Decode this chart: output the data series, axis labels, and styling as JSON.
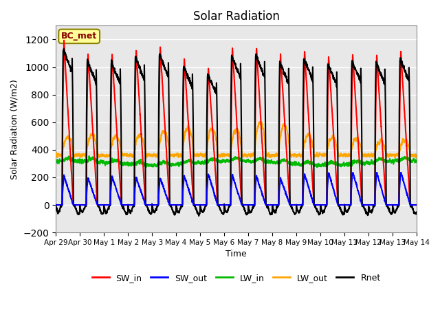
{
  "title": "Solar Radiation",
  "xlabel": "Time",
  "ylabel": "Solar Radiation (W/m2)",
  "ylim": [
    -200,
    1300
  ],
  "yticks": [
    -200,
    0,
    200,
    400,
    600,
    800,
    1000,
    1200
  ],
  "legend_label": "BC_met",
  "legend_box_color": "#FFFF99",
  "legend_box_edge": "#8B8000",
  "series": [
    "SW_in",
    "SW_out",
    "LW_in",
    "LW_out",
    "Rnet"
  ],
  "colors": {
    "SW_in": "#FF0000",
    "SW_out": "#0000FF",
    "LW_in": "#00BB00",
    "LW_out": "#FFA500",
    "Rnet": "#000000"
  },
  "line_widths": {
    "SW_in": 1.5,
    "SW_out": 1.5,
    "LW_in": 1.5,
    "LW_out": 1.5,
    "Rnet": 1.5
  },
  "num_days": 15,
  "samples_per_day": 144,
  "background_color": "#FFFFFF",
  "axes_bg_color": "#E8E8E8",
  "grid_color": "#FFFFFF",
  "tick_labels": [
    "Apr 29",
    "Apr 30",
    "May 1",
    "May 2",
    "May 3",
    "May 4",
    "May 5",
    "May 6",
    "May 7",
    "May 8",
    "May 9",
    "May 10",
    "May 11",
    "May 12",
    "May 13",
    "May 14"
  ],
  "tick_positions": [
    0,
    1,
    2,
    3,
    4,
    5,
    6,
    7,
    8,
    9,
    10,
    11,
    12,
    13,
    14,
    15
  ],
  "sw_in_peaks": [
    1190,
    1100,
    1090,
    1130,
    1150,
    1060,
    1000,
    1140,
    1150,
    1090,
    1120,
    1080,
    1100,
    1090,
    1120
  ],
  "sw_out_peaks": [
    210,
    195,
    205,
    200,
    195,
    210,
    225,
    215,
    210,
    195,
    225,
    235,
    240,
    235,
    240
  ],
  "lw_out_day_peaks": [
    490,
    510,
    500,
    505,
    535,
    560,
    550,
    545,
    600,
    580,
    510,
    490,
    480,
    460,
    470
  ],
  "lw_out_night": 360,
  "lw_in_base": 305,
  "rnet_night": -90,
  "day_start": 0.27,
  "day_end": 0.73
}
